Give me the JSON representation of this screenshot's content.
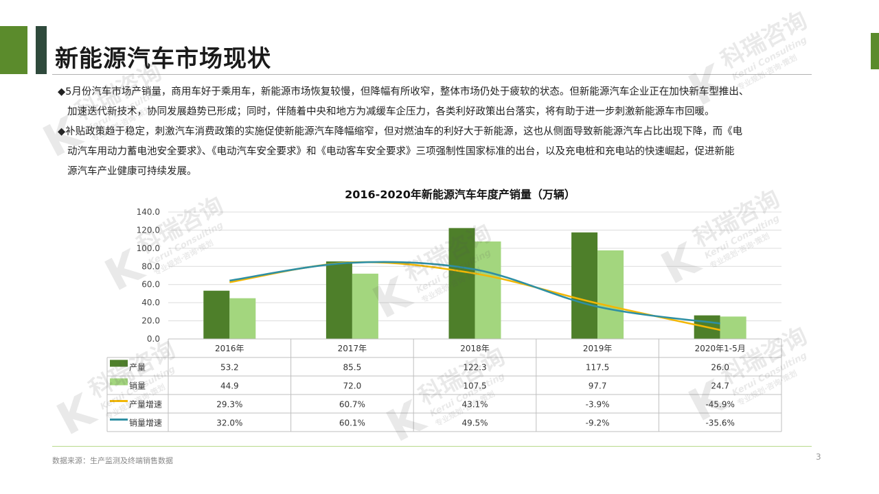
{
  "slide": {
    "title": "新能源汽车市场现状",
    "bullets": [
      [
        "◆5月份汽车市场产销量，商用车好于乘用车，新能源市场恢复较慢，但降幅有所收窄，整体市场仍处于疲软的状态。但新能源汽车企业正在加快新车型推出、",
        "加速迭代新技术，协同发展趋势已形成；同时，伴随着中央和地方为减缓车企压力，各类利好政策出台落实，将有助于进一步刺激新能源车市回暖。"
      ],
      [
        "◆补贴政策趋于稳定，刺激汽车消费政策的实施促使新能源汽车降幅缩窄，但对燃油车的利好大于新能源，这也从侧面导致新能源汽车占比出现下降，而《电",
        "动汽车用动力蓄电池安全要求》、《电动汽车安全要求》和《电动客车安全要求》三项强制性国家标准的出台，以及充电桩和充电站的快速崛起，促进新能",
        "源汽车产业健康可持续发展。"
      ]
    ],
    "source": "数据来源：生产监测及终端销售数据",
    "page_number": "3"
  },
  "watermark": {
    "brand_cn": "科瑞咨询",
    "brand_en": "Kerui Consulting",
    "tagline": "专业规划·咨询·策划"
  },
  "colors": {
    "accent_dark_green": "#5b8b2c",
    "bar_production": "#4e7f2a",
    "bar_sales": "#a3d67e",
    "line_production_growth": "#f2b705",
    "line_sales_growth": "#2e8fa3"
  },
  "chart_data": {
    "type": "bar",
    "title": "2016-2020年新能源汽车年度产销量（万辆）",
    "categories": [
      "2016年",
      "2017年",
      "2018年",
      "2019年",
      "2020年1-5月"
    ],
    "ylim": [
      0,
      140
    ],
    "yticks": [
      "0.0",
      "20.0",
      "40.0",
      "60.0",
      "80.0",
      "100.0",
      "120.0",
      "140.0"
    ],
    "grid": true,
    "series": [
      {
        "name": "产量",
        "kind": "bar",
        "values": [
          53.2,
          85.5,
          122.3,
          117.5,
          26.0
        ],
        "labels": [
          "53.2",
          "85.5",
          "122.3",
          "117.5",
          "26.0"
        ]
      },
      {
        "name": "销量",
        "kind": "bar",
        "values": [
          44.9,
          72.0,
          107.5,
          97.7,
          24.7
        ],
        "labels": [
          "44.9",
          "72.0",
          "107.5",
          "97.7",
          "24.7"
        ]
      },
      {
        "name": "产量增速",
        "kind": "line",
        "values": [
          29.3,
          60.7,
          43.1,
          -3.9,
          -45.9
        ],
        "labels": [
          "29.3%",
          "60.7%",
          "43.1%",
          "-3.9%",
          "-45.9%"
        ]
      },
      {
        "name": "销量增速",
        "kind": "line",
        "values": [
          32.0,
          60.1,
          49.5,
          -9.2,
          -35.6
        ],
        "labels": [
          "32.0%",
          "60.1%",
          "49.5%",
          "-9.2%",
          "-35.6%"
        ]
      }
    ]
  }
}
